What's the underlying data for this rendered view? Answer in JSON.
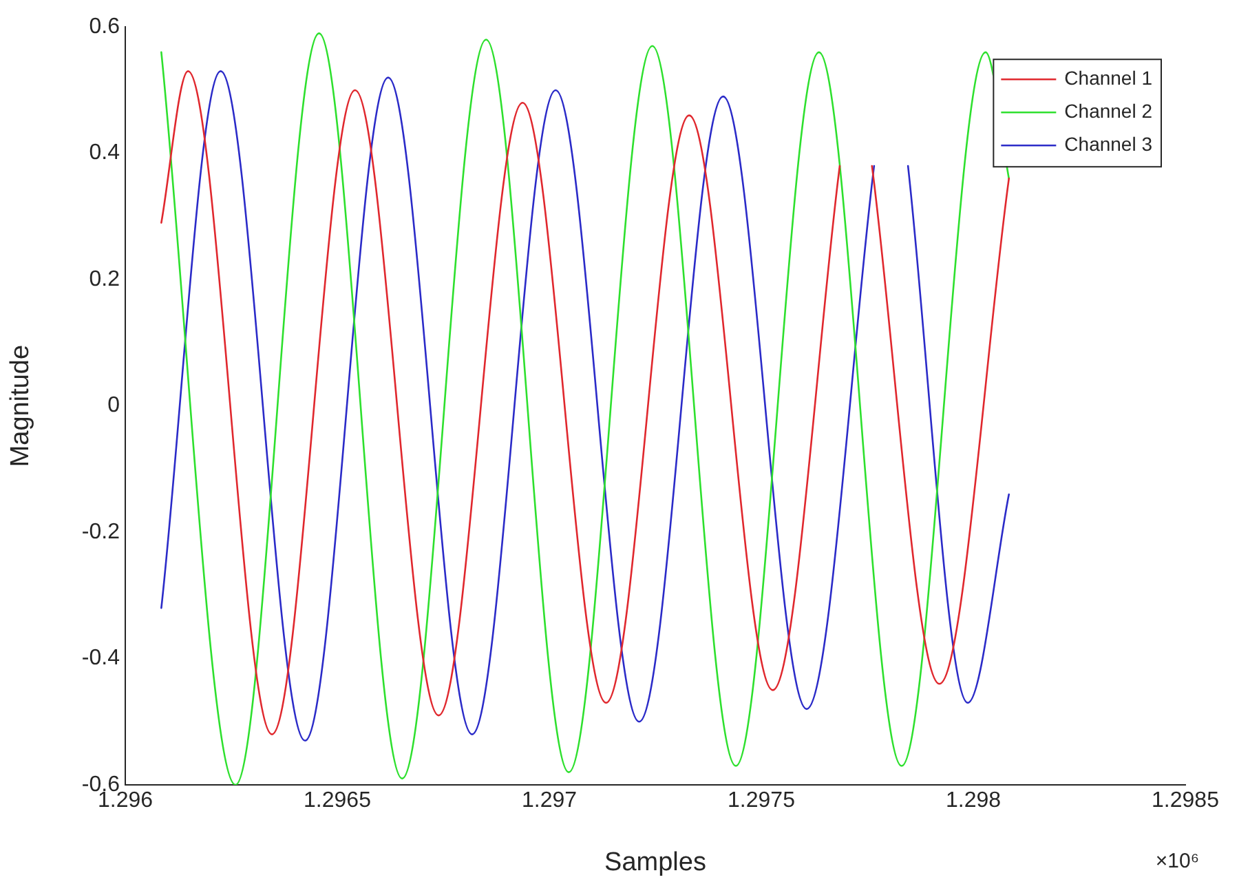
{
  "chart_data": {
    "type": "line",
    "xlabel": "Samples",
    "ylabel": "Magnitude",
    "xlim": [
      1.296,
      1.2985
    ],
    "xticks": [
      1.296,
      1.2965,
      1.297,
      1.2975,
      1.298,
      1.2985
    ],
    "ylim": [
      -0.6,
      0.6
    ],
    "yticks": [
      -0.6,
      -0.4,
      -0.2,
      0,
      0.2,
      0.4,
      0.6
    ],
    "grid": false,
    "legend": "top right",
    "marker": "none",
    "line_style": "solid",
    "annotations": [
      "×10⁶"
    ],
    "series": [
      {
        "name": "Channel 1",
        "color": "#e0282e",
        "x": [
          1.296085,
          1.296148,
          1.296346,
          1.296542,
          1.296739,
          1.296937,
          1.297134,
          1.29733,
          1.297527,
          1.297685,
          1.297723,
          1.297761,
          1.29792,
          1.298084
        ],
        "values": [
          0.29,
          0.53,
          -0.52,
          0.5,
          -0.49,
          0.48,
          -0.47,
          0.46,
          -0.45,
          0.38,
          null,
          0.38,
          -0.44,
          0.36
        ]
      },
      {
        "name": "Channel 2",
        "color": "#2ee02e",
        "x": [
          1.296085,
          1.29626,
          1.296457,
          1.296653,
          1.296851,
          1.297046,
          1.297243,
          1.29744,
          1.297636,
          1.297831,
          1.298029,
          1.298084
        ],
        "values": [
          0.56,
          -0.6,
          0.59,
          -0.59,
          0.58,
          -0.58,
          0.57,
          -0.57,
          0.56,
          -0.57,
          0.56,
          0.36
        ]
      },
      {
        "name": "Channel 3",
        "color": "#2b2bc8",
        "x": [
          1.296085,
          1.296225,
          1.296424,
          1.29662,
          1.296818,
          1.297015,
          1.297212,
          1.29741,
          1.297607,
          1.297766,
          1.297806,
          1.297846,
          1.297987,
          1.298084
        ],
        "values": [
          -0.32,
          0.53,
          -0.53,
          0.52,
          -0.52,
          0.5,
          -0.5,
          0.49,
          -0.48,
          0.38,
          null,
          0.38,
          -0.47,
          -0.14
        ]
      }
    ]
  }
}
